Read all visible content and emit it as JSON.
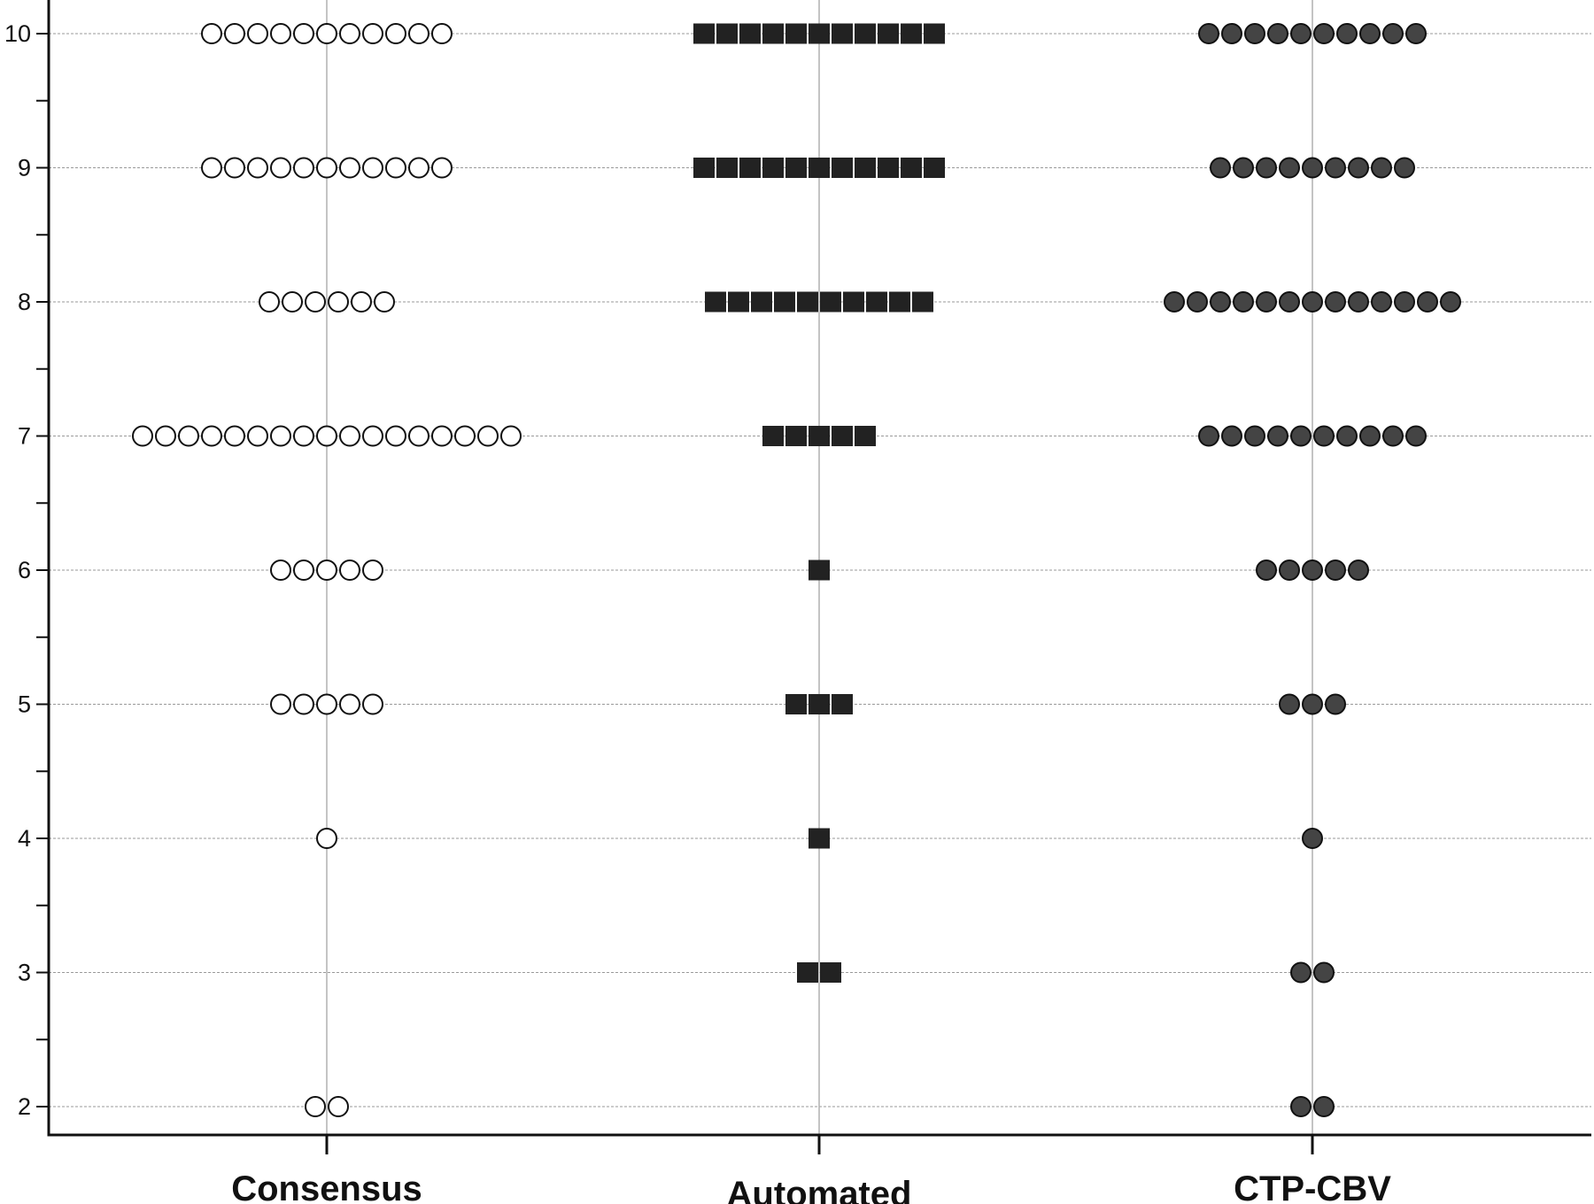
{
  "chart_data": {
    "type": "scatter",
    "subtype": "dot-plot",
    "title": "",
    "xlabel": "",
    "ylabel": "",
    "categories": [
      "Consensus",
      "Automated",
      "CTP-CBV"
    ],
    "ylim": [
      2,
      10
    ],
    "yticks": [
      2,
      3,
      4,
      5,
      6,
      7,
      8,
      9,
      10
    ],
    "grid": true,
    "legend": "none",
    "series": [
      {
        "category": "Consensus",
        "marker": "circle-open",
        "fill": "#ffffff",
        "stroke": "#111111",
        "counts": {
          "2": 2,
          "3": 0,
          "4": 1,
          "5": 5,
          "6": 5,
          "7": 17,
          "8": 6,
          "9": 11,
          "10": 11
        }
      },
      {
        "category": "Automated",
        "marker": "square-filled",
        "fill": "#222222",
        "stroke": "#222222",
        "counts": {
          "2": 0,
          "3": 2,
          "4": 1,
          "5": 3,
          "6": 1,
          "7": 5,
          "8": 10,
          "9": 11,
          "10": 11
        }
      },
      {
        "category": "CTP-CBV",
        "marker": "circle-filled",
        "fill": "#444444",
        "stroke": "#111111",
        "counts": {
          "2": 2,
          "3": 2,
          "4": 1,
          "5": 3,
          "6": 5,
          "7": 10,
          "8": 13,
          "9": 9,
          "10": 10
        }
      }
    ]
  }
}
